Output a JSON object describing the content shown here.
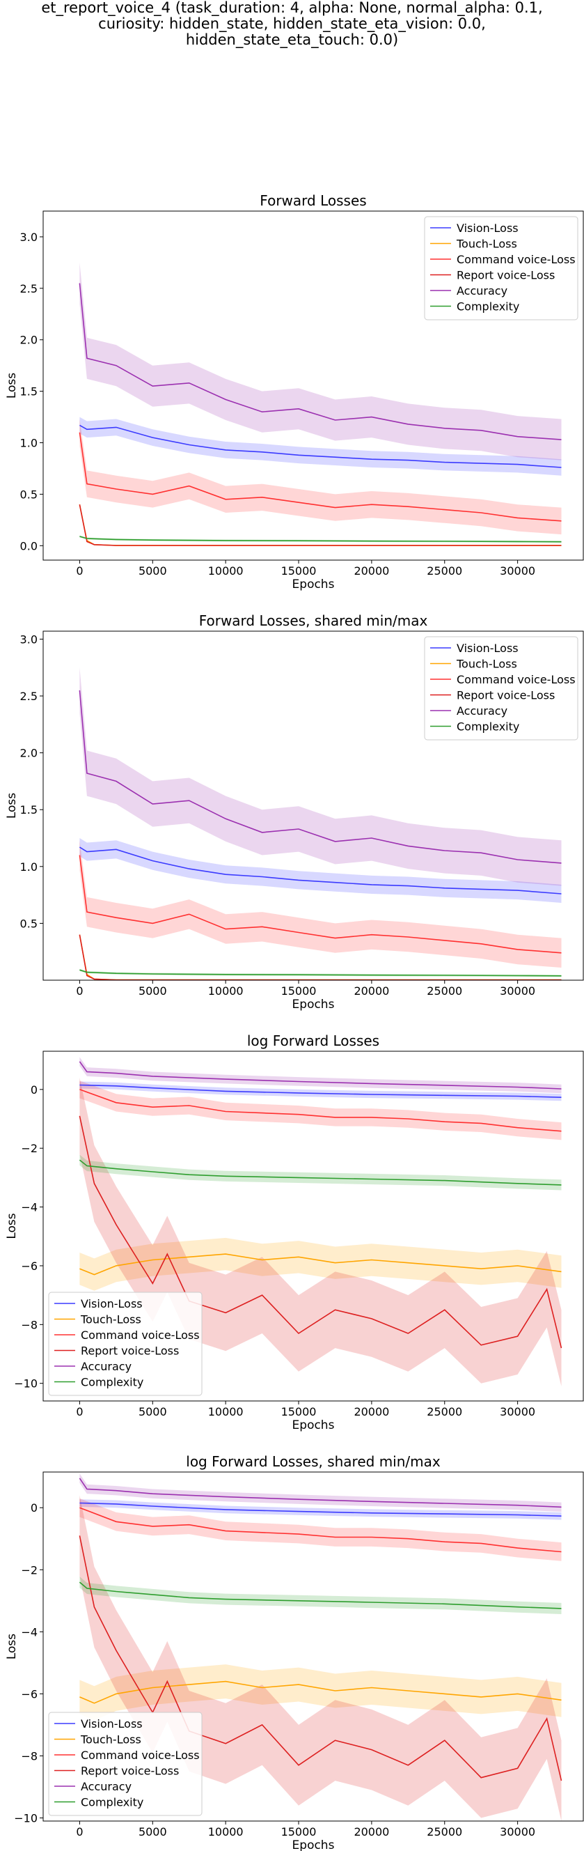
{
  "suptitle": [
    "et_report_voice_4 (task_duration: 4, alpha: None, normal_alpha: 0.1,",
    "curiosity: hidden_state, hidden_state_eta_vision: 0.0,",
    "hidden_state_eta_touch: 0.0)"
  ],
  "series_styles": [
    {
      "name": "Vision-Loss",
      "color": "#3b3bff"
    },
    {
      "name": "Touch-Loss",
      "color": "#ffa500"
    },
    {
      "name": "Command voice-Loss",
      "color": "#ff3030"
    },
    {
      "name": "Report voice-Loss",
      "color": "#dd2020"
    },
    {
      "name": "Accuracy",
      "color": "#9b30b0"
    },
    {
      "name": "Complexity",
      "color": "#2e9e2e"
    }
  ],
  "chart_data": [
    {
      "type": "line",
      "title": "Forward Losses",
      "xlabel": "Epochs",
      "ylabel": "Loss",
      "xlim": [
        -2500,
        34500
      ],
      "ylim": [
        -0.14,
        3.25
      ],
      "xticks": [
        0,
        5000,
        10000,
        15000,
        20000,
        25000,
        30000
      ],
      "yticks": [
        0.0,
        0.5,
        1.0,
        1.5,
        2.0,
        2.5,
        3.0
      ],
      "ytick_labels": [
        "0.0",
        "0.5",
        "1.0",
        "1.5",
        "2.0",
        "2.5",
        "3.0"
      ],
      "log": false,
      "legend": "top-right",
      "series": [
        {
          "name": "Vision-Loss",
          "x": [
            0,
            500,
            2500,
            5000,
            7500,
            10000,
            12500,
            15000,
            17500,
            20000,
            22500,
            25000,
            27500,
            30000,
            33000
          ],
          "values": [
            1.17,
            1.13,
            1.15,
            1.05,
            0.98,
            0.93,
            0.91,
            0.88,
            0.86,
            0.84,
            0.83,
            0.81,
            0.8,
            0.79,
            0.76
          ],
          "band": 0.08
        },
        {
          "name": "Touch-Loss",
          "x": [
            0,
            500,
            1000,
            2500,
            5000,
            10000,
            15000,
            20000,
            25000,
            30000,
            33000
          ],
          "values": [
            0.4,
            0.05,
            0.01,
            0.003,
            0.003,
            0.003,
            0.003,
            0.003,
            0.003,
            0.003,
            0.003
          ],
          "band": 0.005
        },
        {
          "name": "Command voice-Loss",
          "x": [
            0,
            500,
            2500,
            5000,
            7500,
            10000,
            12500,
            15000,
            17500,
            20000,
            22500,
            25000,
            27500,
            30000,
            33000
          ],
          "values": [
            1.1,
            0.6,
            0.55,
            0.5,
            0.58,
            0.45,
            0.47,
            0.42,
            0.37,
            0.4,
            0.38,
            0.35,
            0.32,
            0.27,
            0.24
          ],
          "band": 0.13
        },
        {
          "name": "Report voice-Loss",
          "x": [
            0,
            500,
            1000,
            2500,
            5000,
            10000,
            15000,
            20000,
            25000,
            30000,
            33000
          ],
          "values": [
            0.4,
            0.04,
            0.01,
            0.002,
            0.002,
            0.002,
            0.002,
            0.002,
            0.002,
            0.002,
            0.002
          ],
          "band": 0.005
        },
        {
          "name": "Accuracy",
          "x": [
            0,
            500,
            2500,
            5000,
            7500,
            10000,
            12500,
            15000,
            17500,
            20000,
            22500,
            25000,
            27500,
            30000,
            33000
          ],
          "values": [
            2.55,
            1.82,
            1.75,
            1.55,
            1.58,
            1.42,
            1.3,
            1.33,
            1.22,
            1.25,
            1.18,
            1.14,
            1.12,
            1.06,
            1.03
          ],
          "band": 0.2
        },
        {
          "name": "Complexity",
          "x": [
            0,
            500,
            2500,
            5000,
            10000,
            15000,
            20000,
            25000,
            30000,
            33000
          ],
          "values": [
            0.09,
            0.07,
            0.06,
            0.055,
            0.05,
            0.048,
            0.045,
            0.043,
            0.04,
            0.038
          ],
          "band": 0.01
        }
      ]
    },
    {
      "type": "line",
      "title": "Forward Losses, shared min/max",
      "xlabel": "Epochs",
      "ylabel": "Loss",
      "xlim": [
        -2500,
        34500
      ],
      "ylim": [
        0.0,
        3.07
      ],
      "xticks": [
        0,
        5000,
        10000,
        15000,
        20000,
        25000,
        30000
      ],
      "yticks": [
        0.5,
        1.0,
        1.5,
        2.0,
        2.5,
        3.0
      ],
      "ytick_labels": [
        "0.5",
        "1.0",
        "1.5",
        "2.0",
        "2.5",
        "3.0"
      ],
      "log": false,
      "legend": "top-right",
      "series": [
        {
          "name": "Vision-Loss",
          "x": [
            0,
            500,
            2500,
            5000,
            7500,
            10000,
            12500,
            15000,
            17500,
            20000,
            22500,
            25000,
            27500,
            30000,
            33000
          ],
          "values": [
            1.17,
            1.13,
            1.15,
            1.05,
            0.98,
            0.93,
            0.91,
            0.88,
            0.86,
            0.84,
            0.83,
            0.81,
            0.8,
            0.79,
            0.76
          ],
          "band": 0.08
        },
        {
          "name": "Touch-Loss",
          "x": [
            0,
            500,
            1000,
            2500,
            5000,
            10000,
            15000,
            20000,
            25000,
            30000,
            33000
          ],
          "values": [
            0.4,
            0.05,
            0.01,
            0.003,
            0.003,
            0.003,
            0.003,
            0.003,
            0.003,
            0.003,
            0.003
          ],
          "band": 0.005
        },
        {
          "name": "Command voice-Loss",
          "x": [
            0,
            500,
            2500,
            5000,
            7500,
            10000,
            12500,
            15000,
            17500,
            20000,
            22500,
            25000,
            27500,
            30000,
            33000
          ],
          "values": [
            1.1,
            0.6,
            0.55,
            0.5,
            0.58,
            0.45,
            0.47,
            0.42,
            0.37,
            0.4,
            0.38,
            0.35,
            0.32,
            0.27,
            0.24
          ],
          "band": 0.13
        },
        {
          "name": "Report voice-Loss",
          "x": [
            0,
            500,
            1000,
            2500,
            5000,
            10000,
            15000,
            20000,
            25000,
            30000,
            33000
          ],
          "values": [
            0.4,
            0.04,
            0.01,
            0.002,
            0.002,
            0.002,
            0.002,
            0.002,
            0.002,
            0.002,
            0.002
          ],
          "band": 0.005
        },
        {
          "name": "Accuracy",
          "x": [
            0,
            500,
            2500,
            5000,
            7500,
            10000,
            12500,
            15000,
            17500,
            20000,
            22500,
            25000,
            27500,
            30000,
            33000
          ],
          "values": [
            2.55,
            1.82,
            1.75,
            1.55,
            1.58,
            1.42,
            1.3,
            1.33,
            1.22,
            1.25,
            1.18,
            1.14,
            1.12,
            1.06,
            1.03
          ],
          "band": 0.2
        },
        {
          "name": "Complexity",
          "x": [
            0,
            500,
            2500,
            5000,
            10000,
            15000,
            20000,
            25000,
            30000,
            33000
          ],
          "values": [
            0.09,
            0.07,
            0.06,
            0.055,
            0.05,
            0.048,
            0.045,
            0.043,
            0.04,
            0.038
          ],
          "band": 0.01
        }
      ]
    },
    {
      "type": "line",
      "title": "log Forward Losses",
      "xlabel": "Epochs",
      "ylabel": "Loss",
      "xlim": [
        -2500,
        34500
      ],
      "ylim": [
        -10.6,
        1.3
      ],
      "xticks": [
        0,
        5000,
        10000,
        15000,
        20000,
        25000,
        30000
      ],
      "yticks": [
        0,
        -2,
        -4,
        -6,
        -8,
        -10
      ],
      "ytick_labels": [
        "0",
        "−2",
        "−4",
        "−6",
        "−8",
        "−10"
      ],
      "log": true,
      "legend": "bottom-left",
      "series": [
        {
          "name": "Vision-Loss",
          "x": [
            0,
            2500,
            5000,
            10000,
            15000,
            20000,
            25000,
            30000,
            33000
          ],
          "values": [
            0.15,
            0.12,
            0.05,
            -0.06,
            -0.12,
            -0.17,
            -0.2,
            -0.23,
            -0.27
          ],
          "band": 0.12
        },
        {
          "name": "Touch-Loss",
          "x": [
            0,
            1000,
            2500,
            5000,
            7500,
            10000,
            12500,
            15000,
            17500,
            20000,
            22500,
            25000,
            27500,
            30000,
            33000
          ],
          "values": [
            -6.1,
            -6.3,
            -6.0,
            -5.8,
            -5.7,
            -5.6,
            -5.8,
            -5.7,
            -5.9,
            -5.8,
            -5.9,
            -6.0,
            -6.1,
            -6.0,
            -6.2
          ],
          "band": 0.55
        },
        {
          "name": "Command voice-Loss",
          "x": [
            0,
            2500,
            5000,
            7500,
            10000,
            12500,
            15000,
            17500,
            20000,
            22500,
            25000,
            27500,
            30000,
            33000
          ],
          "values": [
            0.0,
            -0.45,
            -0.6,
            -0.55,
            -0.75,
            -0.8,
            -0.85,
            -0.95,
            -0.95,
            -1.0,
            -1.1,
            -1.15,
            -1.3,
            -1.42
          ],
          "band": 0.3
        },
        {
          "name": "Report voice-Loss",
          "x": [
            0,
            1000,
            2500,
            4000,
            5000,
            6000,
            7500,
            10000,
            12500,
            15000,
            17500,
            20000,
            22500,
            25000,
            27500,
            30000,
            32000,
            33000
          ],
          "values": [
            -0.9,
            -3.2,
            -4.6,
            -5.8,
            -6.6,
            -5.6,
            -7.2,
            -7.6,
            -7.0,
            -8.3,
            -7.5,
            -7.8,
            -8.3,
            -7.5,
            -8.7,
            -8.4,
            -6.8,
            -8.8
          ],
          "band": 1.3
        },
        {
          "name": "Accuracy",
          "x": [
            0,
            500,
            2500,
            5000,
            10000,
            15000,
            20000,
            25000,
            30000,
            33000
          ],
          "values": [
            0.95,
            0.6,
            0.55,
            0.45,
            0.35,
            0.27,
            0.2,
            0.14,
            0.08,
            0.02
          ],
          "band": 0.15
        },
        {
          "name": "Complexity",
          "x": [
            0,
            500,
            2500,
            5000,
            7500,
            10000,
            15000,
            20000,
            25000,
            30000,
            33000
          ],
          "values": [
            -2.4,
            -2.6,
            -2.7,
            -2.8,
            -2.9,
            -2.95,
            -3.0,
            -3.05,
            -3.1,
            -3.2,
            -3.25
          ],
          "band": 0.18
        }
      ]
    },
    {
      "type": "line",
      "title": "log Forward Losses, shared min/max",
      "xlabel": "Epochs",
      "ylabel": "Loss",
      "xlim": [
        -2500,
        34500
      ],
      "ylim": [
        -10.1,
        1.15
      ],
      "xticks": [
        0,
        5000,
        10000,
        15000,
        20000,
        25000,
        30000
      ],
      "yticks": [
        0,
        -2,
        -4,
        -6,
        -8,
        -10
      ],
      "ytick_labels": [
        "0",
        "−2",
        "−4",
        "−6",
        "−8",
        "−10"
      ],
      "log": true,
      "legend": "bottom-left",
      "series": [
        {
          "name": "Vision-Loss",
          "x": [
            0,
            2500,
            5000,
            10000,
            15000,
            20000,
            25000,
            30000,
            33000
          ],
          "values": [
            0.15,
            0.12,
            0.05,
            -0.06,
            -0.12,
            -0.17,
            -0.2,
            -0.23,
            -0.27
          ],
          "band": 0.12
        },
        {
          "name": "Touch-Loss",
          "x": [
            0,
            1000,
            2500,
            5000,
            7500,
            10000,
            12500,
            15000,
            17500,
            20000,
            22500,
            25000,
            27500,
            30000,
            33000
          ],
          "values": [
            -6.1,
            -6.3,
            -6.0,
            -5.8,
            -5.7,
            -5.6,
            -5.8,
            -5.7,
            -5.9,
            -5.8,
            -5.9,
            -6.0,
            -6.1,
            -6.0,
            -6.2
          ],
          "band": 0.55
        },
        {
          "name": "Command voice-Loss",
          "x": [
            0,
            2500,
            5000,
            7500,
            10000,
            12500,
            15000,
            17500,
            20000,
            22500,
            25000,
            27500,
            30000,
            33000
          ],
          "values": [
            0.0,
            -0.45,
            -0.6,
            -0.55,
            -0.75,
            -0.8,
            -0.85,
            -0.95,
            -0.95,
            -1.0,
            -1.1,
            -1.15,
            -1.3,
            -1.42
          ],
          "band": 0.3
        },
        {
          "name": "Report voice-Loss",
          "x": [
            0,
            1000,
            2500,
            4000,
            5000,
            6000,
            7500,
            10000,
            12500,
            15000,
            17500,
            20000,
            22500,
            25000,
            27500,
            30000,
            32000,
            33000
          ],
          "values": [
            -0.9,
            -3.2,
            -4.6,
            -5.8,
            -6.6,
            -5.6,
            -7.2,
            -7.6,
            -7.0,
            -8.3,
            -7.5,
            -7.8,
            -8.3,
            -7.5,
            -8.7,
            -8.4,
            -6.8,
            -8.8
          ],
          "band": 1.3
        },
        {
          "name": "Accuracy",
          "x": [
            0,
            500,
            2500,
            5000,
            10000,
            15000,
            20000,
            25000,
            30000,
            33000
          ],
          "values": [
            0.95,
            0.6,
            0.55,
            0.45,
            0.35,
            0.27,
            0.2,
            0.14,
            0.08,
            0.02
          ],
          "band": 0.15
        },
        {
          "name": "Complexity",
          "x": [
            0,
            500,
            2500,
            5000,
            7500,
            10000,
            15000,
            20000,
            25000,
            30000,
            33000
          ],
          "values": [
            -2.4,
            -2.6,
            -2.7,
            -2.8,
            -2.9,
            -2.95,
            -3.0,
            -3.05,
            -3.1,
            -3.2,
            -3.25
          ],
          "band": 0.18
        }
      ]
    }
  ]
}
